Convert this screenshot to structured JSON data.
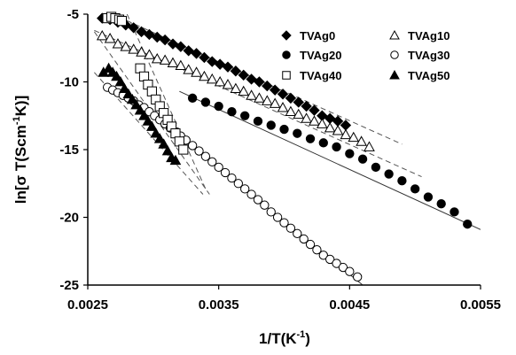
{
  "chart_data": {
    "type": "scatter",
    "title": "",
    "xlabel": {
      "pre": "1/T(K",
      "sup": "-1",
      "post": ")"
    },
    "ylabel": {
      "pre": "ln[σ T(Scm",
      "sup": "-1",
      "post": "K)]"
    },
    "xlim": [
      0.0025,
      0.0055
    ],
    "ylim": [
      -25,
      -5
    ],
    "xticks": [
      "0.0025",
      "0.0035",
      "0.0045",
      "0.0055"
    ],
    "yticks": [
      "-5",
      "-10",
      "-15",
      "-20",
      "-25"
    ],
    "grid": false,
    "legend_position": "top-right",
    "series": [
      {
        "name": "TVAg0",
        "marker": "diamond-filled",
        "x": [
          0.00261,
          0.00267,
          0.00273,
          0.00279,
          0.00285,
          0.00291,
          0.00297,
          0.00303,
          0.00309,
          0.00315,
          0.00321,
          0.00327,
          0.00333,
          0.00339,
          0.00345,
          0.00351,
          0.00357,
          0.00363,
          0.00369,
          0.00375,
          0.00381,
          0.00387,
          0.00393,
          0.00399,
          0.00405,
          0.00411,
          0.00417,
          0.00423,
          0.00429,
          0.00435,
          0.00441,
          0.00447
        ],
        "y": [
          -5.3,
          -5.4,
          -5.6,
          -5.8,
          -6.0,
          -6.3,
          -6.5,
          -6.7,
          -6.9,
          -7.2,
          -7.4,
          -7.7,
          -7.9,
          -8.2,
          -8.5,
          -8.7,
          -8.9,
          -9.2,
          -9.5,
          -9.8,
          -10.0,
          -10.3,
          -10.6,
          -10.9,
          -11.2,
          -11.5,
          -11.8,
          -12.1,
          -12.5,
          -12.7,
          -12.9,
          -13.2
        ]
      },
      {
        "name": "TVAg10",
        "marker": "triangle-open",
        "x": [
          0.00261,
          0.00267,
          0.00273,
          0.00279,
          0.00285,
          0.00291,
          0.00297,
          0.00303,
          0.00309,
          0.00315,
          0.00321,
          0.00327,
          0.00333,
          0.00339,
          0.00345,
          0.00351,
          0.00357,
          0.00363,
          0.00369,
          0.00375,
          0.00381,
          0.00387,
          0.00393,
          0.00399,
          0.00405,
          0.00411,
          0.00417,
          0.00423,
          0.00429,
          0.00435,
          0.00441,
          0.00447,
          0.00453,
          0.00459,
          0.00465
        ],
        "y": [
          -6.6,
          -6.8,
          -7.2,
          -7.4,
          -7.6,
          -7.8,
          -8.0,
          -8.3,
          -8.4,
          -8.6,
          -8.8,
          -9.1,
          -9.3,
          -9.6,
          -9.8,
          -10.0,
          -10.2,
          -10.5,
          -10.7,
          -11.0,
          -11.2,
          -11.4,
          -11.6,
          -11.9,
          -12.2,
          -12.4,
          -12.7,
          -12.9,
          -13.1,
          -13.4,
          -13.6,
          -13.9,
          -14.1,
          -14.4,
          -14.8
        ]
      },
      {
        "name": "TVAg20",
        "marker": "circle-filled",
        "x": [
          0.0033,
          0.0034,
          0.0035,
          0.0036,
          0.0037,
          0.0038,
          0.0039,
          0.004,
          0.0041,
          0.0042,
          0.0043,
          0.0044,
          0.0045,
          0.0046,
          0.0047,
          0.0048,
          0.0049,
          0.005,
          0.0051,
          0.0052,
          0.0053,
          0.0054
        ],
        "y": [
          -11.2,
          -11.5,
          -11.8,
          -12.2,
          -12.5,
          -12.9,
          -13.2,
          -13.5,
          -13.8,
          -14.2,
          -14.5,
          -14.8,
          -15.3,
          -15.7,
          -16.3,
          -16.8,
          -17.3,
          -17.9,
          -18.5,
          -19.0,
          -19.6,
          -20.5
        ]
      },
      {
        "name": "TVAg30",
        "marker": "circle-open",
        "x": [
          0.00265,
          0.00269,
          0.00273,
          0.00277,
          0.00281,
          0.00285,
          0.00289,
          0.00293,
          0.00297,
          0.00301,
          0.00305,
          0.00309,
          0.00313,
          0.00317,
          0.00321,
          0.00325,
          0.0033,
          0.00335,
          0.0034,
          0.00345,
          0.0035,
          0.00355,
          0.0036,
          0.00365,
          0.0037,
          0.00375,
          0.0038,
          0.00385,
          0.0039,
          0.00395,
          0.004,
          0.00405,
          0.0041,
          0.00415,
          0.0042,
          0.00425,
          0.0043,
          0.00435,
          0.0044,
          0.00445,
          0.0045,
          0.00456
        ],
        "y": [
          -10.4,
          -10.6,
          -10.8,
          -11.0,
          -11.2,
          -11.4,
          -11.7,
          -11.9,
          -12.2,
          -12.5,
          -12.8,
          -13.1,
          -13.4,
          -13.7,
          -14.0,
          -14.3,
          -14.7,
          -15.1,
          -15.5,
          -15.9,
          -16.3,
          -16.7,
          -17.1,
          -17.5,
          -17.9,
          -18.3,
          -18.7,
          -19.1,
          -19.6,
          -20.0,
          -20.4,
          -20.8,
          -21.2,
          -21.6,
          -22.0,
          -22.4,
          -22.8,
          -23.1,
          -23.4,
          -23.7,
          -24.0,
          -24.4
        ]
      },
      {
        "name": "TVAg40",
        "marker": "square-open",
        "x": [
          0.00265,
          0.00268,
          0.00271,
          0.00274,
          0.00276,
          0.0029,
          0.00293,
          0.00296,
          0.00299,
          0.00302,
          0.00305,
          0.00308,
          0.00311,
          0.00314,
          0.00317,
          0.0032,
          0.00323
        ],
        "y": [
          -5.3,
          -5.2,
          -5.3,
          -5.4,
          -5.5,
          -9.0,
          -9.6,
          -10.2,
          -10.7,
          -11.3,
          -11.8,
          -12.3,
          -12.8,
          -13.3,
          -13.8,
          -14.4,
          -15.0
        ]
      },
      {
        "name": "TVAg50",
        "marker": "triangle-filled",
        "x": [
          0.00262,
          0.00266,
          0.00269,
          0.00272,
          0.00275,
          0.00278,
          0.00281,
          0.00284,
          0.00287,
          0.0029,
          0.00293,
          0.00296,
          0.00299,
          0.00302,
          0.00305,
          0.00308,
          0.00311,
          0.00314,
          0.00317
        ],
        "y": [
          -9.3,
          -9.0,
          -9.3,
          -9.6,
          -10.0,
          -10.5,
          -10.9,
          -11.3,
          -11.7,
          -12.1,
          -12.5,
          -12.9,
          -13.3,
          -13.8,
          -14.2,
          -14.6,
          -15.1,
          -15.6,
          -15.8
        ]
      }
    ],
    "fit_lines": [
      {
        "style": "dashed",
        "x": [
          0.00255,
          0.0049
        ],
        "y": [
          -4.4,
          -14.6
        ]
      },
      {
        "style": "dashed",
        "x": [
          0.00255,
          0.00505
        ],
        "y": [
          -6.2,
          -17.0
        ]
      },
      {
        "style": "solid",
        "x": [
          0.0032,
          0.0055
        ],
        "y": [
          -10.7,
          -20.9
        ]
      },
      {
        "style": "solid",
        "x": [
          0.003,
          0.0046
        ],
        "y": [
          -12.4,
          -25.0
        ]
      },
      {
        "style": "dashed",
        "x": [
          0.00255,
          0.00338
        ],
        "y": [
          -9.3,
          -18.3
        ]
      },
      {
        "style": "dashed",
        "x": [
          0.00255,
          0.00343
        ],
        "y": [
          -6.3,
          -18.3
        ]
      },
      {
        "style": "dashed",
        "x": [
          0.0028,
          0.0034
        ],
        "y": [
          -5.0,
          -17.9
        ]
      }
    ]
  }
}
